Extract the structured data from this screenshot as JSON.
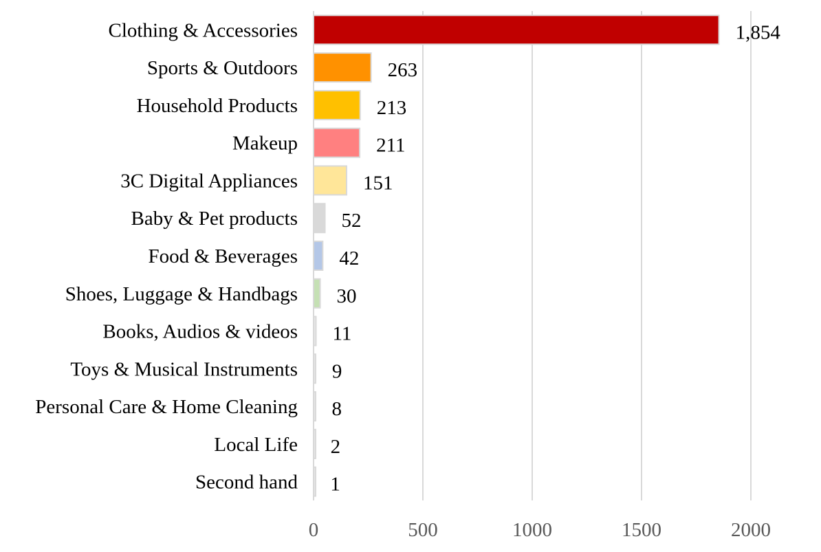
{
  "chart_data": {
    "type": "bar",
    "orientation": "horizontal",
    "title": "",
    "xlabel": "",
    "ylabel": "",
    "xlim": [
      0,
      2000
    ],
    "x_ticks": [
      0,
      500,
      1000,
      1500,
      2000
    ],
    "x_tick_labels": [
      "0",
      "500",
      "1000",
      "1500",
      "2000"
    ],
    "grid": "vertical",
    "legend": "none",
    "categories": [
      "Clothing & Accessories",
      "Sports & Outdoors",
      "Household Products",
      "Makeup",
      "3C Digital Appliances",
      "Baby & Pet products",
      "Food & Beverages",
      "Shoes, Luggage & Handbags",
      "Books, Audios & videos",
      "Toys & Musical Instruments",
      "Personal Care & Home Cleaning",
      "Local Life",
      "Second hand"
    ],
    "values": [
      1854,
      263,
      213,
      211,
      151,
      52,
      42,
      30,
      11,
      9,
      8,
      2,
      1
    ],
    "value_labels": [
      "1,854",
      "263",
      "213",
      "211",
      "151",
      "52",
      "42",
      "30",
      "11",
      "9",
      "8",
      "2",
      "1"
    ],
    "colors": [
      "#c00000",
      "#ff9100",
      "#ffc000",
      "#ff8080",
      "#ffe699",
      "#d9d9d9",
      "#b4c7e7",
      "#c5e0b4",
      "#e6e6e6",
      "#e6e6e6",
      "#e6e6e6",
      "#e6e6e6",
      "#e6e6e6"
    ]
  }
}
